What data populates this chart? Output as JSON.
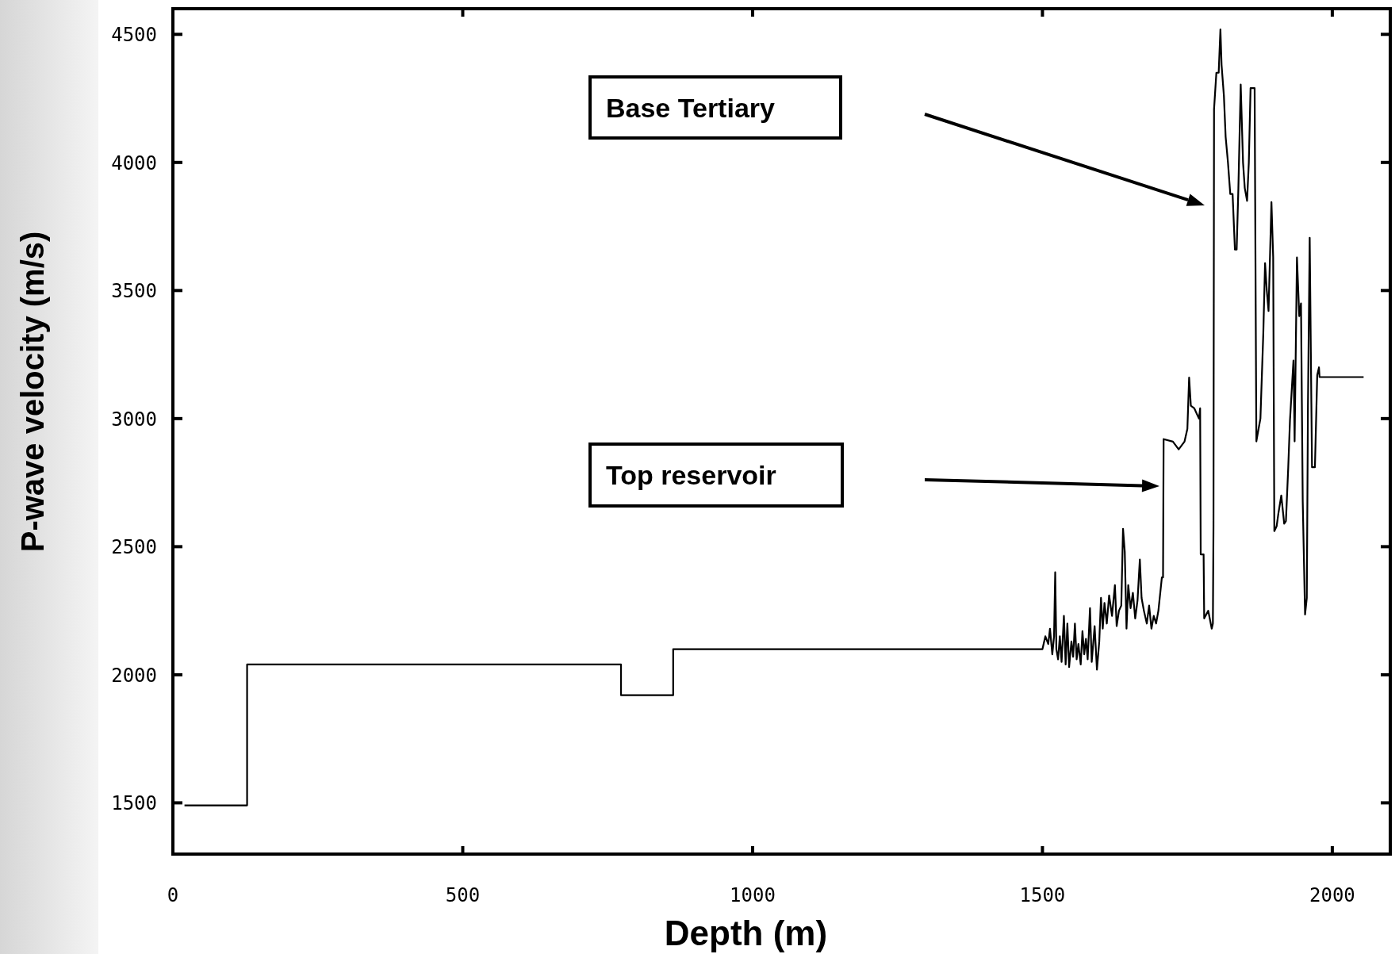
{
  "chart_data": {
    "type": "line",
    "xlabel": "Depth (m)",
    "ylabel": "P-wave velocity (m/s)",
    "xlim": [
      0,
      2100
    ],
    "ylim": [
      1300,
      4600
    ],
    "xticks": [
      0,
      500,
      1000,
      1500,
      2000
    ],
    "yticks": [
      1500,
      2000,
      2500,
      3000,
      3500,
      4000,
      4500
    ],
    "grid": false,
    "annotations": [
      "Base Tertiary",
      "Top reservoir"
    ],
    "series": [
      {
        "color": "#000000",
        "x": [
          20,
          128,
          128,
          773,
          773,
          863,
          863,
          1500,
          1505,
          1510,
          1513,
          1517,
          1520,
          1522,
          1524,
          1527,
          1530,
          1533,
          1537,
          1540,
          1543,
          1546,
          1550,
          1553,
          1556,
          1559,
          1562,
          1566,
          1569,
          1572,
          1575,
          1578,
          1582,
          1585,
          1590,
          1594,
          1598,
          1601,
          1604,
          1607,
          1611,
          1615,
          1620,
          1625,
          1628,
          1632,
          1636,
          1639,
          1642,
          1645,
          1648,
          1652,
          1656,
          1660,
          1664,
          1668,
          1671,
          1675,
          1680,
          1684,
          1688,
          1692,
          1696,
          1700,
          1706,
          1708,
          1709,
          1725,
          1735,
          1745,
          1750,
          1753,
          1756,
          1762,
          1770,
          1772,
          1773,
          1778,
          1779,
          1786,
          1792,
          1794,
          1795,
          1796,
          1800,
          1804,
          1807,
          1809,
          1813,
          1816,
          1820,
          1824,
          1828,
          1832,
          1835,
          1838,
          1842,
          1846,
          1849,
          1853,
          1856,
          1859,
          1866,
          1869,
          1872,
          1876,
          1881,
          1884,
          1887,
          1890,
          1895,
          1898,
          1900,
          1904,
          1907,
          1912,
          1917,
          1920,
          1924,
          1927,
          1933,
          1935,
          1939,
          1943,
          1946,
          1949,
          1953,
          1956,
          1958,
          1961,
          1965,
          1970,
          1974,
          1977,
          1978,
          2054
        ],
        "values": [
          1490,
          1490,
          2040,
          2040,
          1920,
          1920,
          2100,
          2100,
          2150,
          2120,
          2180,
          2080,
          2150,
          2400,
          2100,
          2060,
          2150,
          2050,
          2230,
          2040,
          2200,
          2030,
          2130,
          2070,
          2200,
          2060,
          2120,
          2040,
          2170,
          2080,
          2140,
          2060,
          2260,
          2050,
          2190,
          2020,
          2130,
          2300,
          2180,
          2280,
          2200,
          2310,
          2230,
          2350,
          2190,
          2250,
          2270,
          2570,
          2480,
          2180,
          2350,
          2260,
          2320,
          2220,
          2290,
          2450,
          2300,
          2250,
          2200,
          2270,
          2180,
          2230,
          2200,
          2250,
          2380,
          2380,
          2920,
          2910,
          2880,
          2910,
          2960,
          3160,
          3050,
          3040,
          3000,
          3040,
          2470,
          2470,
          2220,
          2250,
          2180,
          2200,
          2576,
          4208,
          4350,
          4350,
          4519,
          4380,
          4260,
          4100,
          4000,
          3877,
          3877,
          3660,
          3660,
          3900,
          4304,
          4000,
          3900,
          3850,
          4000,
          4290,
          4290,
          2911,
          2950,
          3000,
          3335,
          3607,
          3500,
          3420,
          3845,
          3630,
          2561,
          2580,
          2630,
          2700,
          2590,
          2600,
          2810,
          2994,
          3227,
          2911,
          3629,
          3400,
          3450,
          2676,
          2235,
          2300,
          3050,
          3706,
          2810,
          2810,
          3170,
          3200,
          3162,
          3162
        ]
      }
    ]
  }
}
